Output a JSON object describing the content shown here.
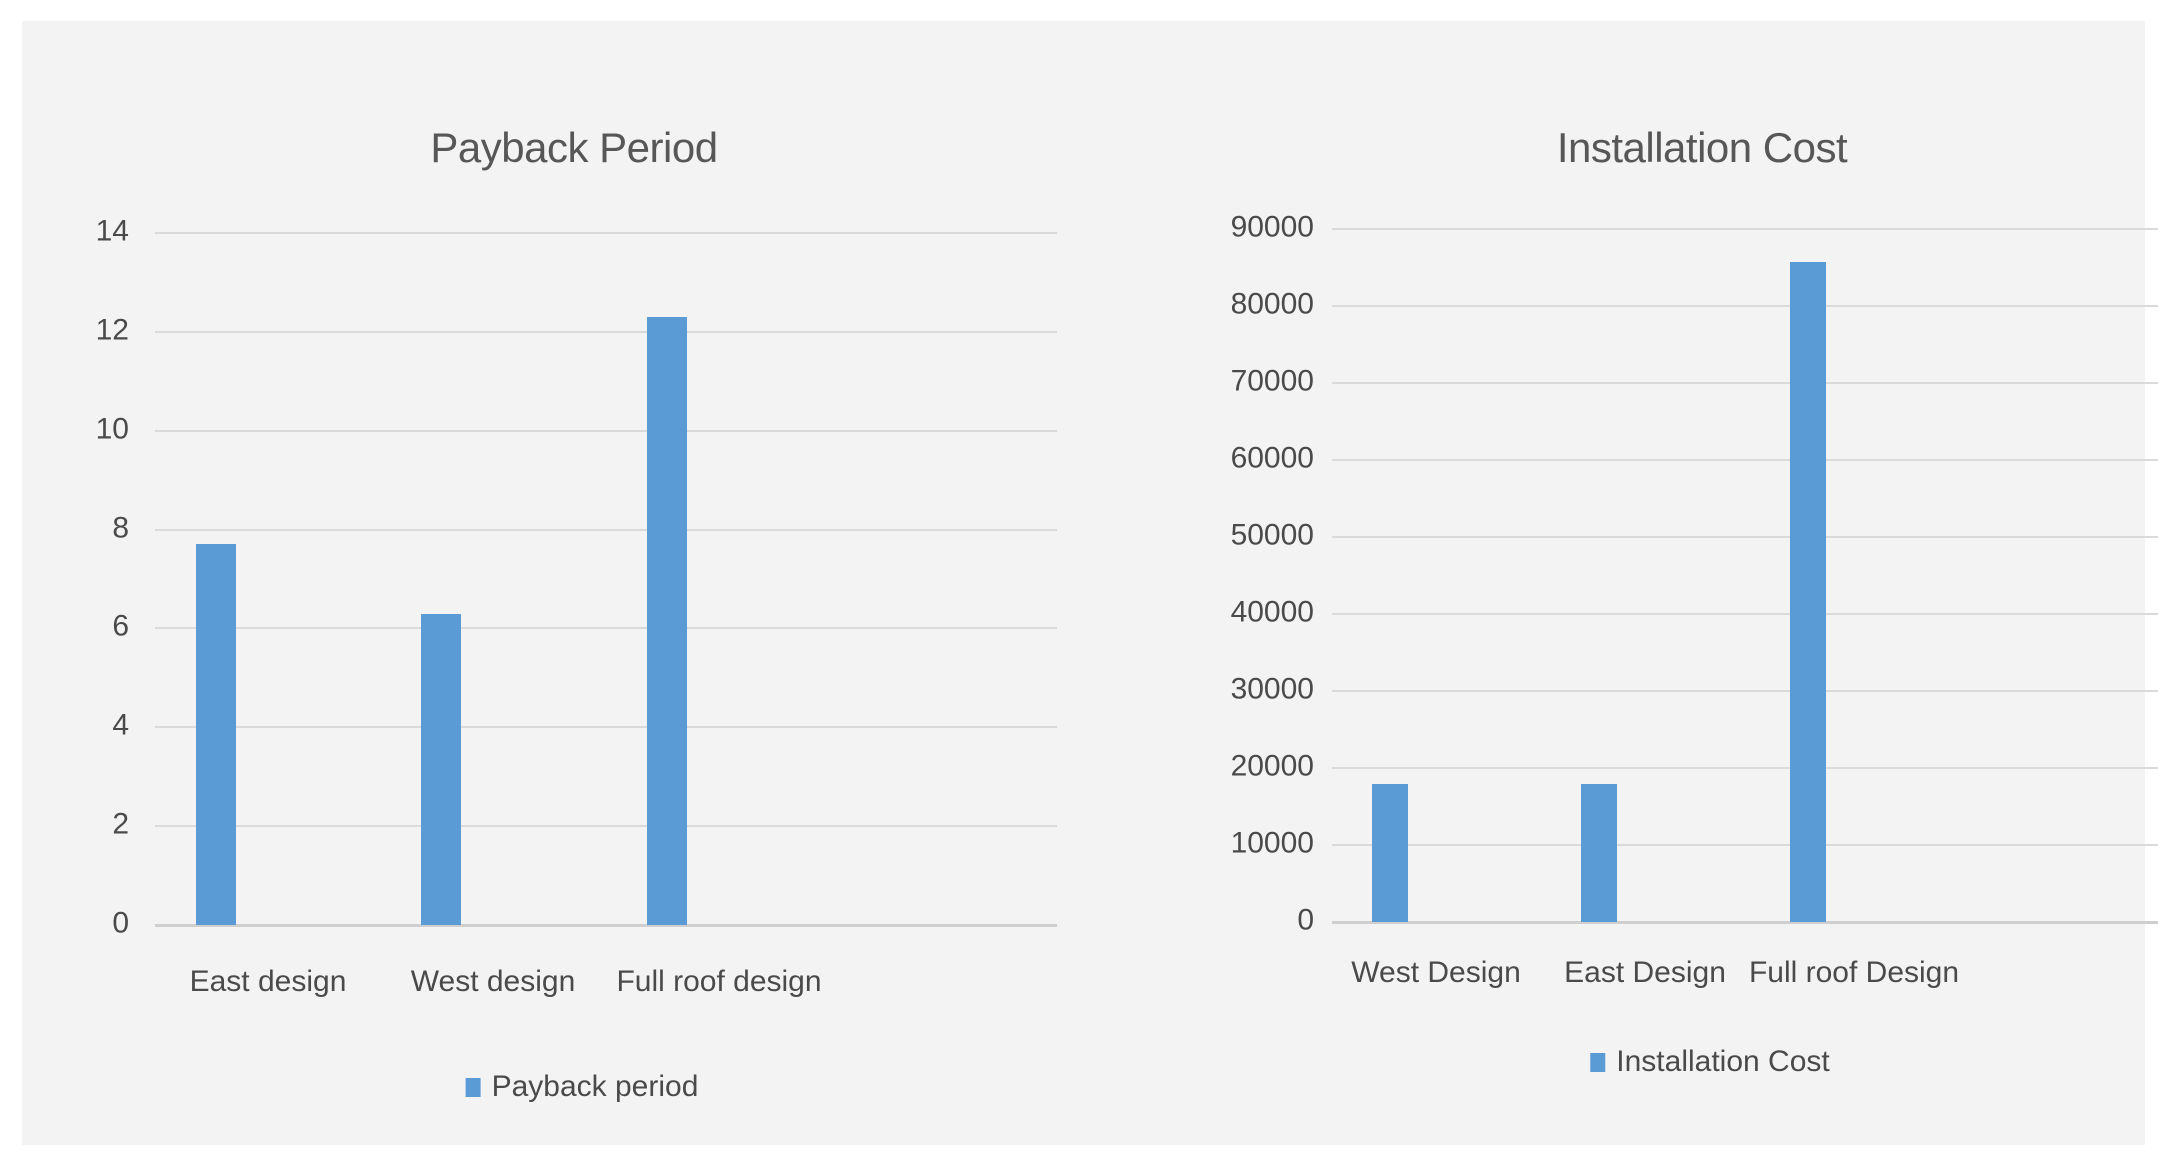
{
  "page": {
    "background": "#ffffff",
    "canvas_color": "#f3f3f3"
  },
  "colors": {
    "bar_fill": "#5b9bd5",
    "gridline": "#dadada",
    "axis_line": "#cfcfcf",
    "title_text": "#575757",
    "label_text": "#4a4a4a"
  },
  "chart_data": [
    {
      "type": "bar",
      "title": "Payback Period",
      "categories": [
        "East design",
        "West design",
        "Full roof design"
      ],
      "series": [
        {
          "name": "Payback period",
          "values": [
            7.7,
            6.3,
            12.3
          ]
        }
      ],
      "xlabel": "",
      "ylabel": "",
      "ylim": [
        0,
        14
      ],
      "ytick_step": 2,
      "ytick_labels": [
        "0",
        "2",
        "4",
        "6",
        "8",
        "10",
        "12",
        "14"
      ],
      "grid": true,
      "legend": {
        "label": "Payback period",
        "position": "bottom"
      }
    },
    {
      "type": "bar",
      "title": "Installation Cost",
      "categories": [
        "West Design",
        "East Design",
        "Full roof Design"
      ],
      "series": [
        {
          "name": "Installation Cost",
          "values": [
            17900,
            17900,
            85700
          ]
        }
      ],
      "xlabel": "",
      "ylabel": "",
      "ylim": [
        0,
        90000
      ],
      "ytick_step": 10000,
      "ytick_labels": [
        "0",
        "10000",
        "20000",
        "30000",
        "40000",
        "50000",
        "60000",
        "70000",
        "80000",
        "90000"
      ],
      "grid": true,
      "legend": {
        "label": "Installation Cost",
        "position": "bottom"
      }
    }
  ]
}
